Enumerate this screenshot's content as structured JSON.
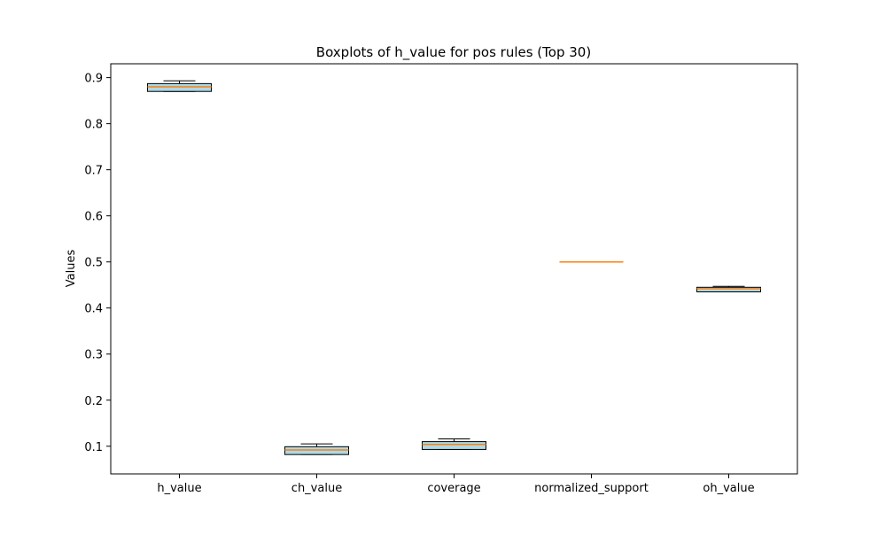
{
  "chart_data": {
    "type": "box",
    "title": "Boxplots of h_value for pos rules (Top 30)",
    "xlabel": "",
    "ylabel": "Values",
    "ylim": [
      0.04,
      0.93
    ],
    "yticks": [
      0.1,
      0.2,
      0.3,
      0.4,
      0.5,
      0.6,
      0.7,
      0.8,
      0.9
    ],
    "categories": [
      "h_value",
      "ch_value",
      "coverage",
      "normalized_support",
      "oh_value"
    ],
    "boxes": [
      {
        "category": "h_value",
        "whisker_low": 0.87,
        "q1": 0.87,
        "median": 0.88,
        "q3": 0.887,
        "whisker_high": 0.893
      },
      {
        "category": "ch_value",
        "whisker_low": 0.082,
        "q1": 0.082,
        "median": 0.092,
        "q3": 0.099,
        "whisker_high": 0.105
      },
      {
        "category": "coverage",
        "whisker_low": 0.093,
        "q1": 0.093,
        "median": 0.104,
        "q3": 0.11,
        "whisker_high": 0.116
      },
      {
        "category": "normalized_support",
        "whisker_low": 0.5,
        "q1": 0.5,
        "median": 0.5,
        "q3": 0.5,
        "whisker_high": 0.5
      },
      {
        "category": "oh_value",
        "whisker_low": 0.435,
        "q1": 0.435,
        "median": 0.442,
        "q3": 0.445,
        "whisker_high": 0.447
      }
    ],
    "colors": {
      "box_fill": "#add8e6",
      "box_edge": "#000000",
      "median": "#ff7f0e",
      "whisker": "#000000"
    },
    "grid": false,
    "legend": "none"
  }
}
